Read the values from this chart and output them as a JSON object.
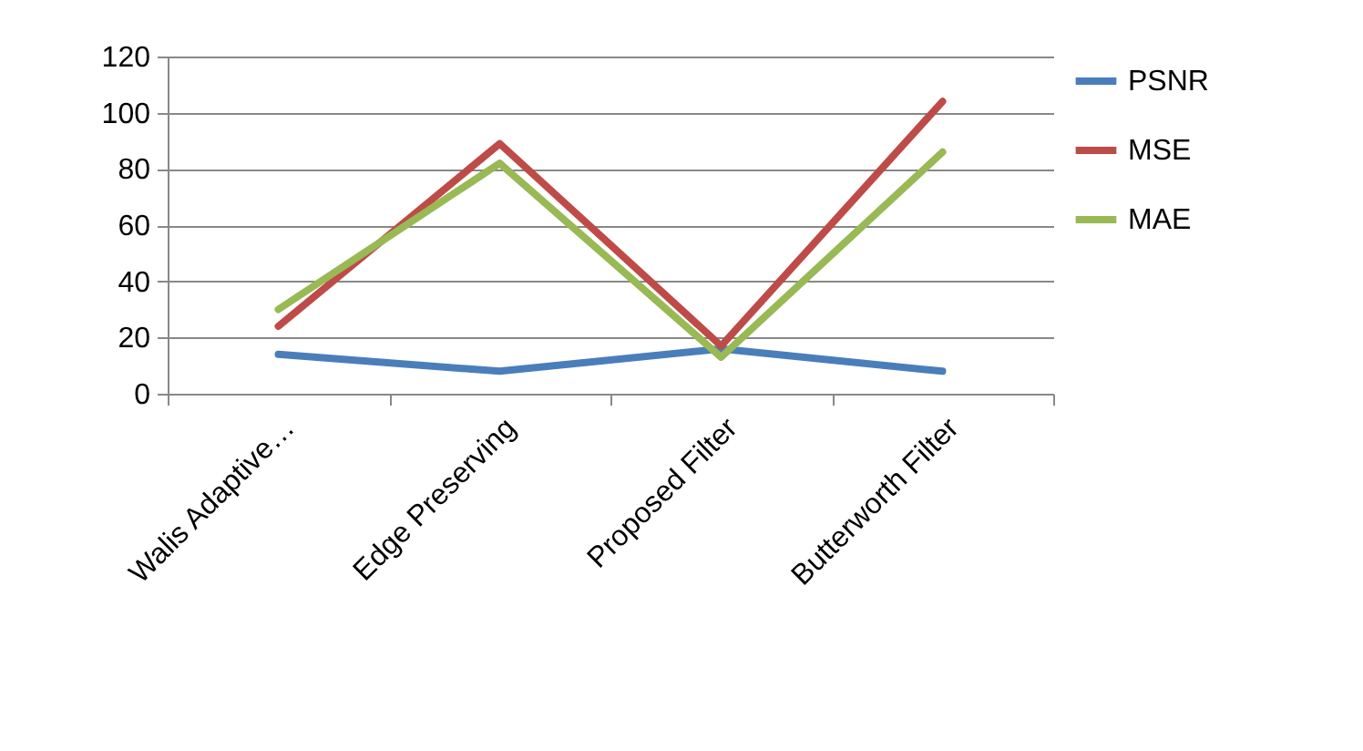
{
  "chart_data": {
    "type": "line",
    "categories": [
      "Walis Adaptive…",
      "Edge Preserving",
      "Proposed Filter",
      "Butterworth Filter"
    ],
    "series": [
      {
        "name": "PSNR",
        "color": "#4a7ebb",
        "values": [
          14,
          8,
          16,
          8
        ]
      },
      {
        "name": "MSE",
        "color": "#be4b48",
        "values": [
          24,
          89,
          17,
          104
        ]
      },
      {
        "name": "MAE",
        "color": "#98b954",
        "values": [
          30,
          82,
          13,
          86
        ]
      }
    ],
    "ylim": [
      0,
      120
    ],
    "yticks": [
      0,
      20,
      40,
      60,
      80,
      100,
      120
    ],
    "grid": "y",
    "legend": "right",
    "marker": "none",
    "line_style": "solid"
  }
}
